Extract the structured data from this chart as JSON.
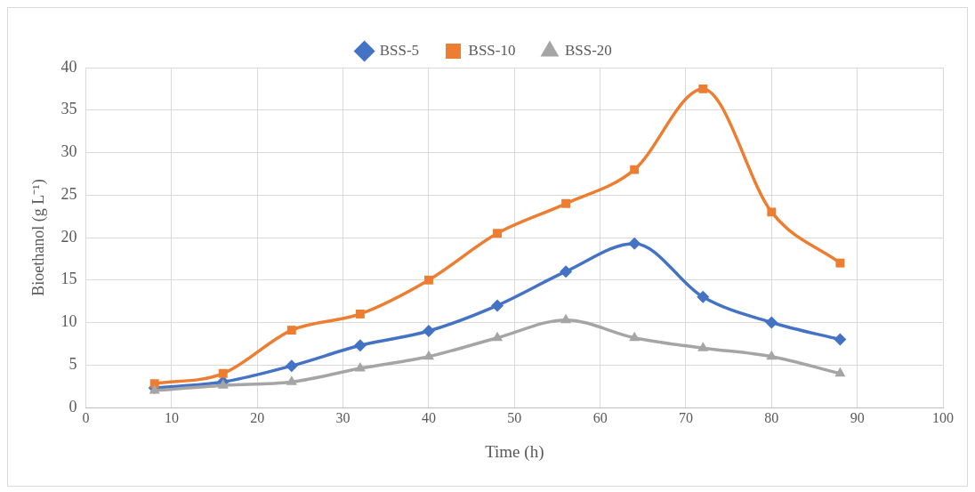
{
  "chart_data": {
    "type": "line",
    "xlabel": "Time (h)",
    "ylabel": "Bioethanol (g L⁻¹)",
    "x": [
      8,
      16,
      24,
      32,
      40,
      48,
      56,
      64,
      72,
      80,
      88
    ],
    "series": [
      {
        "name": "BSS-5",
        "color": "#4472c4",
        "marker": "diamond",
        "values": [
          2.3,
          3,
          4.9,
          7.3,
          9,
          12,
          16,
          19.3,
          13,
          10,
          8
        ]
      },
      {
        "name": "BSS-10",
        "color": "#ed7d31",
        "marker": "square",
        "values": [
          2.8,
          4,
          9.1,
          11,
          15,
          20.5,
          24,
          28,
          37.5,
          23,
          17
        ]
      },
      {
        "name": "BSS-20",
        "color": "#a5a5a5",
        "marker": "triangle",
        "values": [
          2,
          2.6,
          3,
          4.6,
          6,
          8.2,
          10.3,
          8.2,
          7,
          6,
          4
        ]
      }
    ],
    "xlim": [
      0,
      100
    ],
    "xticks": [
      0,
      10,
      20,
      30,
      40,
      50,
      60,
      70,
      80,
      90,
      100
    ],
    "ylim": [
      0,
      40
    ],
    "yticks": [
      0,
      5,
      10,
      15,
      20,
      25,
      30,
      35,
      40
    ],
    "grid": true,
    "legend": "top"
  }
}
